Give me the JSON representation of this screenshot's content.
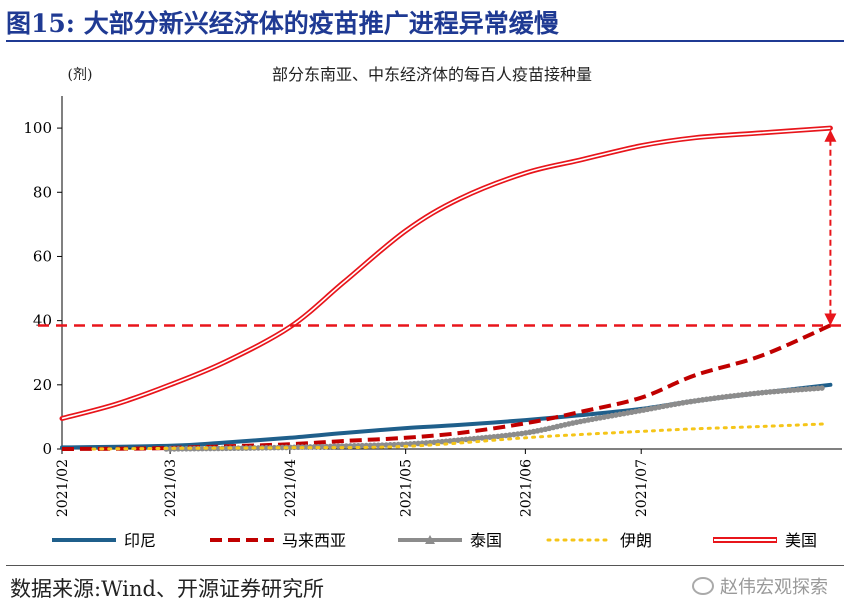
{
  "figure_title": "图15:  大部分新兴经济体的疫苗推广进程异常缓慢",
  "source": "数据来源:Wind、开源证券研究所",
  "watermark": "赵伟宏观探索",
  "colors": {
    "title": "#1f3a93",
    "indonesia": "#1f5f8b",
    "malaysia": "#c00000",
    "thailand": "#8c8c8c",
    "iran": "#f5c518",
    "usa": "#e8151b",
    "reference": "#e8151b"
  },
  "chart_data": {
    "type": "line",
    "title": "部分东南亚、中东经济体的每百人疫苗接种量",
    "ylabel": "(剂)",
    "xlabel": "",
    "ylim": [
      0,
      110
    ],
    "yticks": [
      0,
      20,
      40,
      60,
      80,
      100
    ],
    "xlim": [
      "2021-02-01",
      "2021-08-22"
    ],
    "xtick_labels": [
      "2021/02",
      "2021/03",
      "2021/04",
      "2021/05",
      "2021/06",
      "2021/07"
    ],
    "xtick_dates": [
      "2021-02-01",
      "2021-03-01",
      "2021-04-01",
      "2021-05-01",
      "2021-06-01",
      "2021-07-01"
    ],
    "grid": false,
    "legend_position": "bottom",
    "reference_line": {
      "y": 38.5,
      "style": "dashed"
    },
    "annotation": {
      "type": "double-arrow",
      "date": "2021-08-19",
      "from": 38.5,
      "to": 99.5
    },
    "series": [
      {
        "name": "印尼",
        "key": "indonesia",
        "style": "solid",
        "points": [
          [
            "2021-02-01",
            0.5
          ],
          [
            "2021-03-01",
            1.0
          ],
          [
            "2021-03-15",
            2.0
          ],
          [
            "2021-04-01",
            3.5
          ],
          [
            "2021-04-15",
            5.0
          ],
          [
            "2021-05-01",
            6.5
          ],
          [
            "2021-05-15",
            7.5
          ],
          [
            "2021-06-01",
            9.0
          ],
          [
            "2021-06-15",
            10.5
          ],
          [
            "2021-07-01",
            12.5
          ],
          [
            "2021-07-15",
            15.0
          ],
          [
            "2021-08-01",
            17.5
          ],
          [
            "2021-08-19",
            20.0
          ]
        ]
      },
      {
        "name": "马来西亚",
        "key": "malaysia",
        "style": "dashed",
        "points": [
          [
            "2021-02-01",
            0
          ],
          [
            "2021-02-24",
            0.2
          ],
          [
            "2021-03-15",
            0.8
          ],
          [
            "2021-04-01",
            1.5
          ],
          [
            "2021-04-15",
            2.5
          ],
          [
            "2021-05-01",
            3.5
          ],
          [
            "2021-05-15",
            5.0
          ],
          [
            "2021-06-01",
            8.0
          ],
          [
            "2021-06-15",
            11.5
          ],
          [
            "2021-07-01",
            16.0
          ],
          [
            "2021-07-15",
            23.0
          ],
          [
            "2021-08-01",
            29.0
          ],
          [
            "2021-08-19",
            38.5
          ]
        ]
      },
      {
        "name": "泰国",
        "key": "thailand",
        "style": "marker",
        "points": [
          [
            "2021-02-28",
            0
          ],
          [
            "2021-03-15",
            0.2
          ],
          [
            "2021-04-01",
            0.5
          ],
          [
            "2021-04-15",
            0.9
          ],
          [
            "2021-05-01",
            1.5
          ],
          [
            "2021-05-15",
            2.8
          ],
          [
            "2021-06-01",
            5.0
          ],
          [
            "2021-06-15",
            8.5
          ],
          [
            "2021-07-01",
            12.0
          ],
          [
            "2021-07-15",
            15.0
          ],
          [
            "2021-08-01",
            17.5
          ],
          [
            "2021-08-17",
            19.0
          ]
        ]
      },
      {
        "name": "伊朗",
        "key": "iran",
        "style": "dotted",
        "points": [
          [
            "2021-02-09",
            0
          ],
          [
            "2021-03-01",
            0.2
          ],
          [
            "2021-04-01",
            0.4
          ],
          [
            "2021-05-01",
            0.8
          ],
          [
            "2021-06-01",
            3.5
          ],
          [
            "2021-06-15",
            4.5
          ],
          [
            "2021-07-01",
            5.5
          ],
          [
            "2021-07-15",
            6.3
          ],
          [
            "2021-08-01",
            7.0
          ],
          [
            "2021-08-17",
            7.8
          ]
        ]
      },
      {
        "name": "美国",
        "key": "usa",
        "style": "double",
        "points": [
          [
            "2021-02-01",
            9.5
          ],
          [
            "2021-02-15",
            14.0
          ],
          [
            "2021-03-01",
            20.0
          ],
          [
            "2021-03-15",
            27.0
          ],
          [
            "2021-04-01",
            38.0
          ],
          [
            "2021-04-15",
            52.0
          ],
          [
            "2021-05-01",
            68.0
          ],
          [
            "2021-05-15",
            78.0
          ],
          [
            "2021-06-01",
            86.0
          ],
          [
            "2021-06-15",
            90.0
          ],
          [
            "2021-07-01",
            94.5
          ],
          [
            "2021-07-15",
            97.0
          ],
          [
            "2021-08-01",
            98.5
          ],
          [
            "2021-08-19",
            100.0
          ]
        ]
      }
    ]
  }
}
